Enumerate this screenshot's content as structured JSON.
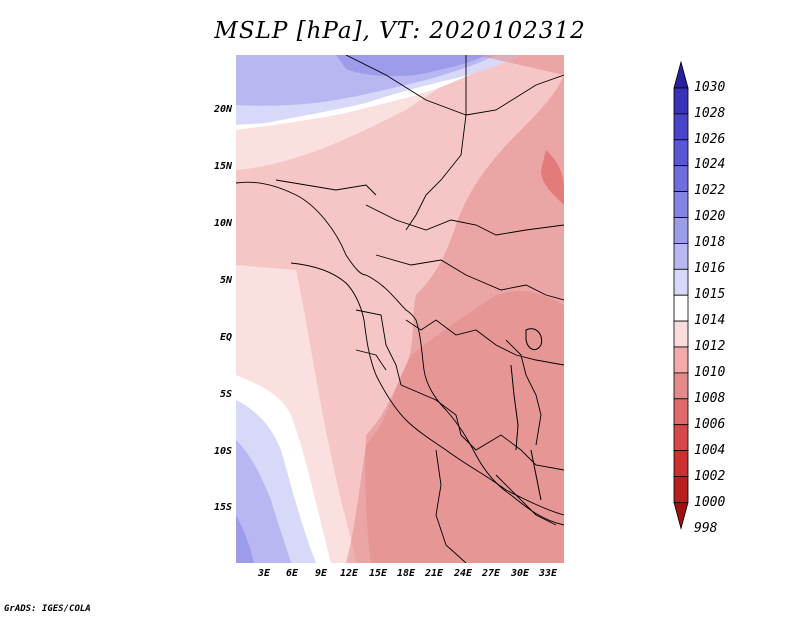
{
  "title": "MSLP [hPa], VT: 2020102312",
  "footer": "GrADS: IGES/COLA",
  "lat_ticks": [
    "20N",
    "15N",
    "10N",
    "5N",
    "EQ",
    "5S",
    "10S",
    "15S"
  ],
  "lon_ticks": [
    "3E",
    "6E",
    "9E",
    "12E",
    "15E",
    "18E",
    "21E",
    "24E",
    "27E",
    "30E",
    "33E"
  ],
  "legend": {
    "labels": [
      "1030",
      "1028",
      "1026",
      "1024",
      "1022",
      "1020",
      "1018",
      "1016",
      "1015",
      "1014",
      "1012",
      "1010",
      "1008",
      "1006",
      "1004",
      "1002",
      "1000",
      "998"
    ],
    "colors": [
      "#2a1f9e",
      "#3a33b8",
      "#4a45c8",
      "#5a57d4",
      "#6e6ddc",
      "#8584e4",
      "#9d9ceb",
      "#b8b7f2",
      "#d8d8f8",
      "#ffffff",
      "#fbdcdc",
      "#f2aaaa",
      "#e48a8a",
      "#e06a6a",
      "#d84848",
      "#cc3030",
      "#b82020",
      "#a01010"
    ]
  }
}
